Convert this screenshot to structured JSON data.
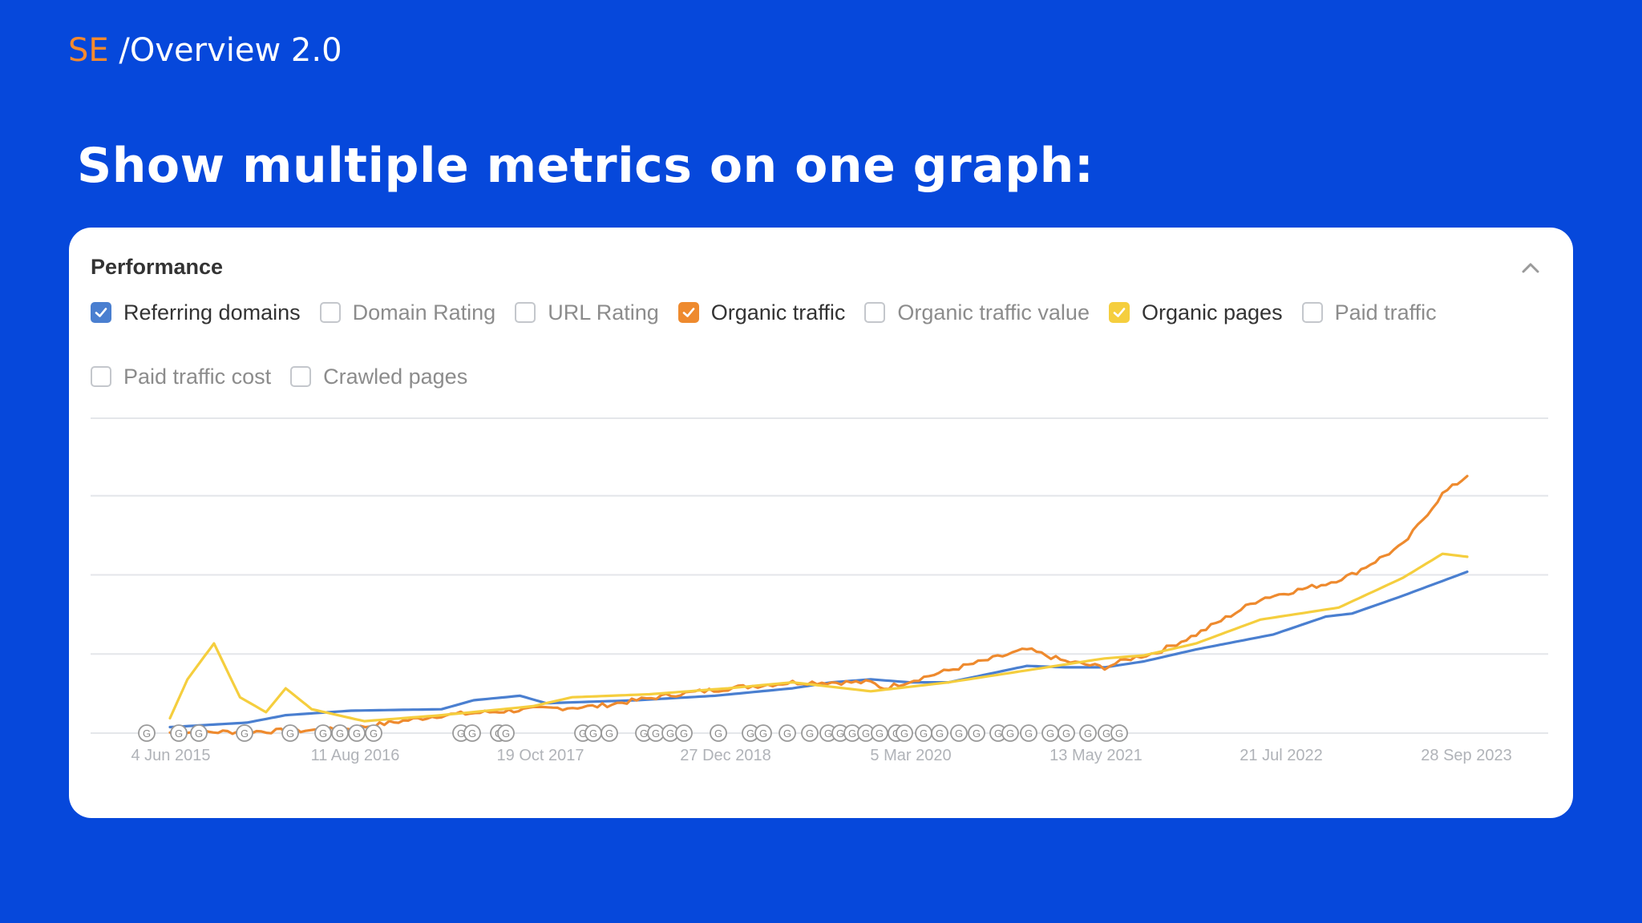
{
  "header": {
    "brand_prefix": "SE",
    "brand_suffix": " /Overview 2.0"
  },
  "headline": "Show multiple metrics on one graph:",
  "card": {
    "title": "Performance",
    "metrics": [
      {
        "label": "Referring domains",
        "checked": true,
        "color": "#4A7FD0"
      },
      {
        "label": "Domain Rating",
        "checked": false
      },
      {
        "label": "URL Rating",
        "checked": false
      },
      {
        "label": "Organic traffic",
        "checked": true,
        "color": "#EE8A2E"
      },
      {
        "label": "Organic traffic value",
        "checked": false
      },
      {
        "label": "Organic pages",
        "checked": true,
        "color": "#F5CE3E"
      },
      {
        "label": "Paid traffic",
        "checked": false
      },
      {
        "label": "Paid traffic cost",
        "checked": false
      },
      {
        "label": "Crawled pages",
        "checked": false
      }
    ]
  },
  "chart_data": {
    "type": "line",
    "x_ticks": [
      "4 Jun 2015",
      "11 Aug 2016",
      "19 Oct 2017",
      "27 Dec 2018",
      "5 Mar 2020",
      "13 May 2021",
      "21 Jul 2022",
      "28 Sep 2023"
    ],
    "x_range": [
      "2015-06-04",
      "2023-09-28"
    ],
    "y_axis_labels": "none",
    "grid": "horizontal",
    "y_scale_note": "no printed y values; values below are relative 0-100 of chart height",
    "series": [
      {
        "name": "Referring domains",
        "color": "#4A7FD0",
        "points": [
          [
            "2015-06-04",
            2
          ],
          [
            "2015-12-01",
            3.5
          ],
          [
            "2016-03-01",
            6
          ],
          [
            "2016-08-01",
            7.5
          ],
          [
            "2017-03-01",
            8
          ],
          [
            "2017-05-15",
            11
          ],
          [
            "2017-09-01",
            12.5
          ],
          [
            "2017-11-01",
            10
          ],
          [
            "2018-06-01",
            11
          ],
          [
            "2018-12-01",
            12.5
          ],
          [
            "2019-06-01",
            15
          ],
          [
            "2019-09-01",
            17
          ],
          [
            "2019-12-01",
            18
          ],
          [
            "2020-03-01",
            17
          ],
          [
            "2020-06-01",
            17
          ],
          [
            "2020-12-01",
            22.5
          ],
          [
            "2021-03-01",
            22
          ],
          [
            "2021-06-01",
            22
          ],
          [
            "2021-09-01",
            24
          ],
          [
            "2022-01-01",
            28
          ],
          [
            "2022-07-01",
            33
          ],
          [
            "2022-11-01",
            39
          ],
          [
            "2023-01-01",
            40
          ],
          [
            "2023-05-01",
            46
          ],
          [
            "2023-09-28",
            54
          ]
        ]
      },
      {
        "name": "Organic traffic",
        "color": "#EE8A2E",
        "points": [
          [
            "2015-06-04",
            0.2
          ],
          [
            "2015-12-01",
            0.5
          ],
          [
            "2016-06-01",
            1
          ],
          [
            "2016-08-01",
            1.5
          ],
          [
            "2017-03-01",
            6
          ],
          [
            "2017-10-01",
            8
          ],
          [
            "2018-03-01",
            9
          ],
          [
            "2018-09-01",
            13
          ],
          [
            "2019-01-01",
            15
          ],
          [
            "2019-06-01",
            17
          ],
          [
            "2019-12-01",
            17
          ],
          [
            "2020-01-01",
            15
          ],
          [
            "2020-06-01",
            21
          ],
          [
            "2020-12-01",
            28
          ],
          [
            "2021-03-01",
            24
          ],
          [
            "2021-06-01",
            22
          ],
          [
            "2021-08-01",
            25
          ],
          [
            "2021-10-01",
            27
          ],
          [
            "2022-01-01",
            33
          ],
          [
            "2022-06-01",
            45
          ],
          [
            "2022-11-01",
            50
          ],
          [
            "2023-01-01",
            53
          ],
          [
            "2023-05-01",
            63
          ],
          [
            "2023-08-01",
            80
          ],
          [
            "2023-09-28",
            86
          ]
        ]
      },
      {
        "name": "Organic pages",
        "color": "#F5CE3E",
        "points": [
          [
            "2015-06-04",
            5
          ],
          [
            "2015-07-15",
            18
          ],
          [
            "2015-09-15",
            30
          ],
          [
            "2015-11-15",
            12
          ],
          [
            "2016-01-15",
            7
          ],
          [
            "2016-03-01",
            15
          ],
          [
            "2016-05-01",
            8
          ],
          [
            "2016-09-01",
            4
          ],
          [
            "2017-03-01",
            6
          ],
          [
            "2017-10-01",
            9
          ],
          [
            "2018-01-01",
            12
          ],
          [
            "2018-07-01",
            13
          ],
          [
            "2019-01-01",
            15
          ],
          [
            "2019-06-01",
            17
          ],
          [
            "2019-12-01",
            14
          ],
          [
            "2020-06-01",
            17
          ],
          [
            "2020-12-01",
            21
          ],
          [
            "2021-06-01",
            25
          ],
          [
            "2021-09-01",
            26
          ],
          [
            "2022-01-01",
            30
          ],
          [
            "2022-06-01",
            38
          ],
          [
            "2022-12-01",
            42
          ],
          [
            "2023-05-01",
            52
          ],
          [
            "2023-08-01",
            60
          ],
          [
            "2023-09-28",
            59
          ]
        ]
      }
    ]
  }
}
